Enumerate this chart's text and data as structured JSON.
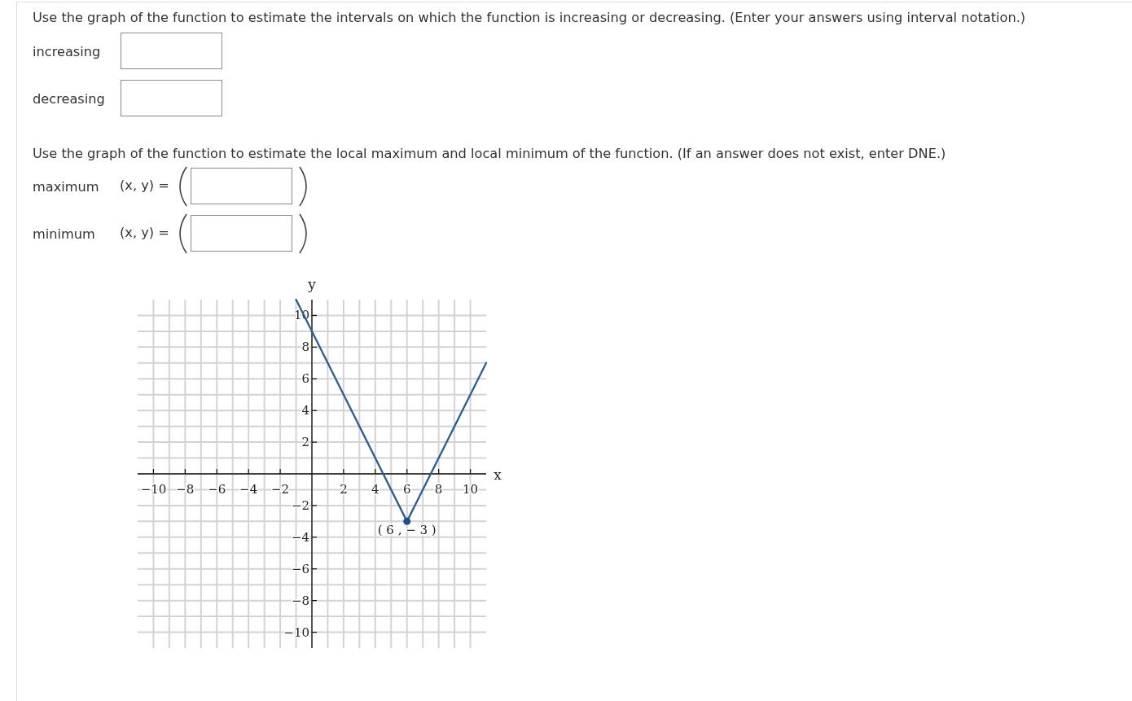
{
  "chart_data": {
    "type": "line",
    "title": "Use the graph of the function to estimate the intervals on which the function is increasing or decreasing. (Enter your answers using interval notation.)",
    "subtitle": "Use the graph of the function to estimate the local maximum and local minimum of the function. (If an answer does not exist, enter DNE.)",
    "xlabel": "x",
    "ylabel": "y",
    "annotations": [
      "increasing",
      "decreasing",
      "maximum",
      "(x, y) =",
      "minimum",
      "(x, y) =",
      {
        "text": "( 6 , − 3 )",
        "x": 6,
        "y": -3
      }
    ],
    "series": [
      {
        "color": "#2c5d8f",
        "x": [
          -1,
          6,
          11
        ],
        "values": [
          11,
          -3,
          7
        ]
      },
      {
        "type": "scatter",
        "color": "#1f4f85",
        "x": [
          6
        ],
        "values": [
          -3
        ],
        "marker": "circle"
      }
    ],
    "xlim": [
      -11,
      11
    ],
    "ylim": [
      -11,
      11
    ],
    "xticks": [
      {
        "value": -10,
        "label": "−10"
      },
      {
        "value": -9,
        "label": null
      },
      {
        "value": -8,
        "label": "−8"
      },
      {
        "value": -7,
        "label": null
      },
      {
        "value": -6,
        "label": "−6"
      },
      {
        "value": -5,
        "label": null
      },
      {
        "value": -4,
        "label": "−4"
      },
      {
        "value": -3,
        "label": null
      },
      {
        "value": -2,
        "label": "−2"
      },
      {
        "value": -1,
        "label": null
      },
      {
        "value": 0,
        "label": null
      },
      {
        "value": 1,
        "label": null
      },
      2,
      {
        "value": 3,
        "label": null
      },
      4,
      {
        "value": 5,
        "label": null
      },
      6,
      {
        "value": 7,
        "label": null
      },
      8,
      {
        "value": 9,
        "label": null
      },
      10
    ],
    "yticks": [
      {
        "value": -10,
        "label": "−10"
      },
      {
        "value": -9,
        "label": null
      },
      {
        "value": -8,
        "label": "−8"
      },
      {
        "value": -7,
        "label": null
      },
      {
        "value": -6,
        "label": "−6"
      },
      {
        "value": -5,
        "label": null
      },
      {
        "value": -4,
        "label": "−4"
      },
      {
        "value": -3,
        "label": null
      },
      {
        "value": -2,
        "label": "−2"
      },
      {
        "value": -1,
        "label": null
      },
      {
        "value": 0,
        "label": null
      },
      {
        "value": 1,
        "label": null
      },
      2,
      {
        "value": 3,
        "label": null
      },
      4,
      {
        "value": 5,
        "label": null
      },
      6,
      {
        "value": 7,
        "label": null
      },
      8,
      {
        "value": 9,
        "label": null
      },
      10
    ],
    "grid": true
  }
}
